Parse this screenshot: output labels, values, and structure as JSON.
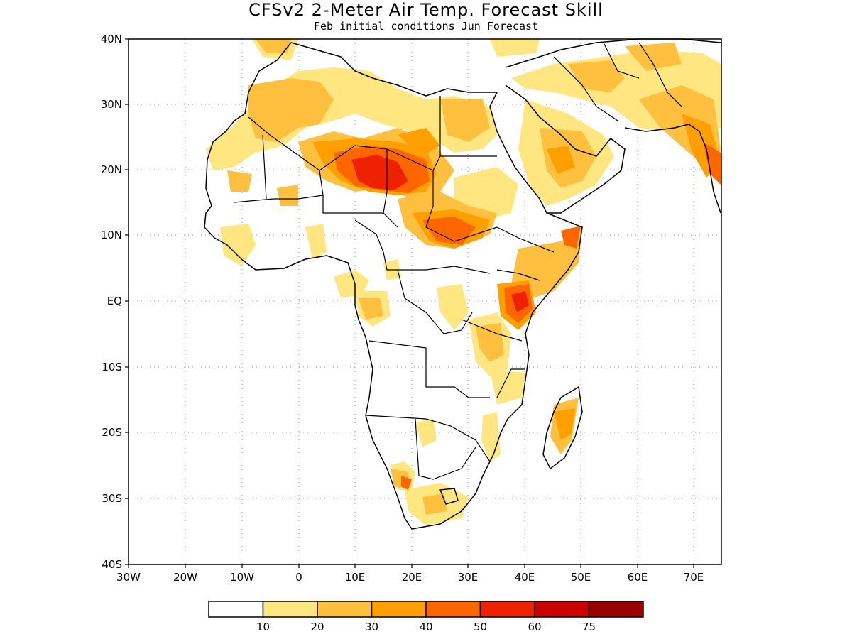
{
  "header": {
    "title": "CFSv2 2-Meter Air Temp. Forecast Skill",
    "subtitle": "Feb initial conditions  Jun Forecast"
  },
  "map": {
    "lat_labels": [
      "40N",
      "30N",
      "20N",
      "10N",
      "EQ",
      "10S",
      "20S",
      "30S",
      "40S"
    ],
    "lon_labels": [
      "30W",
      "20W",
      "10W",
      "0",
      "10E",
      "20E",
      "30E",
      "40E",
      "50E",
      "60E",
      "70E"
    ],
    "grid": true,
    "region": "Africa and Middle East"
  },
  "legend": {
    "tick_labels": [
      "10",
      "20",
      "30",
      "40",
      "50",
      "60",
      "75"
    ],
    "colors": [
      "#ffffff",
      "#ffe680",
      "#ffbf3f",
      "#ff9f00",
      "#ff6600",
      "#ee2200",
      "#cc0000",
      "#990000"
    ]
  }
}
